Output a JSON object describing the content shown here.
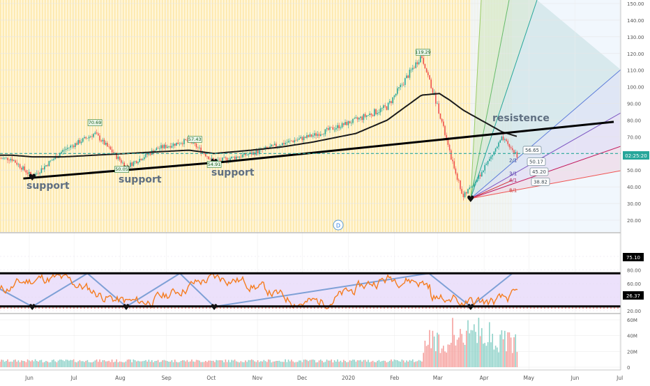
{
  "chart_data": [
    {
      "type": "candlestick",
      "panel": "price",
      "x_tick_labels": [
        "Jun",
        "Jul",
        "Aug",
        "Sep",
        "Oct",
        "Nov",
        "Dec",
        "2020",
        "Feb",
        "Mar",
        "Apr",
        "May",
        "Jun",
        "Jul"
      ],
      "y_tick_labels": [
        "150.00",
        "140.00",
        "130.00",
        "120.00",
        "110.00",
        "100.00",
        "90.00",
        "80.00",
        "70.00",
        "60.00",
        "50.00",
        "40.00",
        "30.00",
        "20.00"
      ],
      "ylim": [
        15,
        152
      ],
      "last_price_label": "02:25:20",
      "price_labels": [
        {
          "text": "70.69",
          "x_date": "2019-07-15",
          "y": 77
        },
        {
          "text": "57.43",
          "x_date": "2019-09-20",
          "y": 67
        },
        {
          "text": "50.05",
          "x_date": "2019-08-02",
          "y": 49
        },
        {
          "text": "54.91",
          "x_date": "2019-10-03",
          "y": 52
        },
        {
          "text": "119.29",
          "x_date": "2020-02-20",
          "y": 119.3
        }
      ],
      "fib_fan_labels": [
        {
          "text": "56.65",
          "y": 60
        },
        {
          "text": "50.17",
          "y": 53
        },
        {
          "text": "45.20",
          "y": 48
        },
        {
          "text": "38.82",
          "y": 42
        }
      ],
      "fan_ratio_labels": [
        "2/1",
        "3/1",
        "4/1",
        "8/1"
      ],
      "annotations": {
        "support": [
          "support",
          "support",
          "support"
        ],
        "resistance": "resistence",
        "event_marker": "D"
      },
      "close_series_x": [
        "2019-05-20",
        "2019-06-03",
        "2019-06-24",
        "2019-07-15",
        "2019-08-05",
        "2019-08-26",
        "2019-09-16",
        "2019-10-03",
        "2019-10-28",
        "2019-11-18",
        "2019-12-09",
        "2020-01-06",
        "2020-01-27",
        "2020-02-19",
        "2020-03-02",
        "2020-03-09",
        "2020-03-18",
        "2020-03-30",
        "2020-04-13",
        "2020-04-24"
      ],
      "close_series_y": [
        57,
        46,
        62,
        72,
        52,
        63,
        68,
        55,
        60,
        66,
        71,
        80,
        88,
        119,
        85,
        60,
        34,
        48,
        69,
        58
      ],
      "moving_average_y": [
        59,
        58,
        58,
        59,
        60,
        61,
        62,
        60,
        62,
        64,
        67,
        72,
        80,
        95,
        96,
        92,
        86,
        80,
        73,
        70
      ]
    },
    {
      "type": "line",
      "panel": "oscillator",
      "y_tick_labels": [
        "100.00",
        "80.00",
        "60.00",
        "40.00",
        "20.00"
      ],
      "ylim": [
        5,
        100
      ],
      "upper_band_label": "75.10",
      "lower_band_label": "26.37",
      "upper_band": 75.1,
      "lower_band": 26.37
    },
    {
      "type": "bar",
      "panel": "volume",
      "y_tick_labels": [
        "60M",
        "40M",
        "20M",
        "0"
      ],
      "ylim": [
        0,
        70
      ]
    }
  ]
}
